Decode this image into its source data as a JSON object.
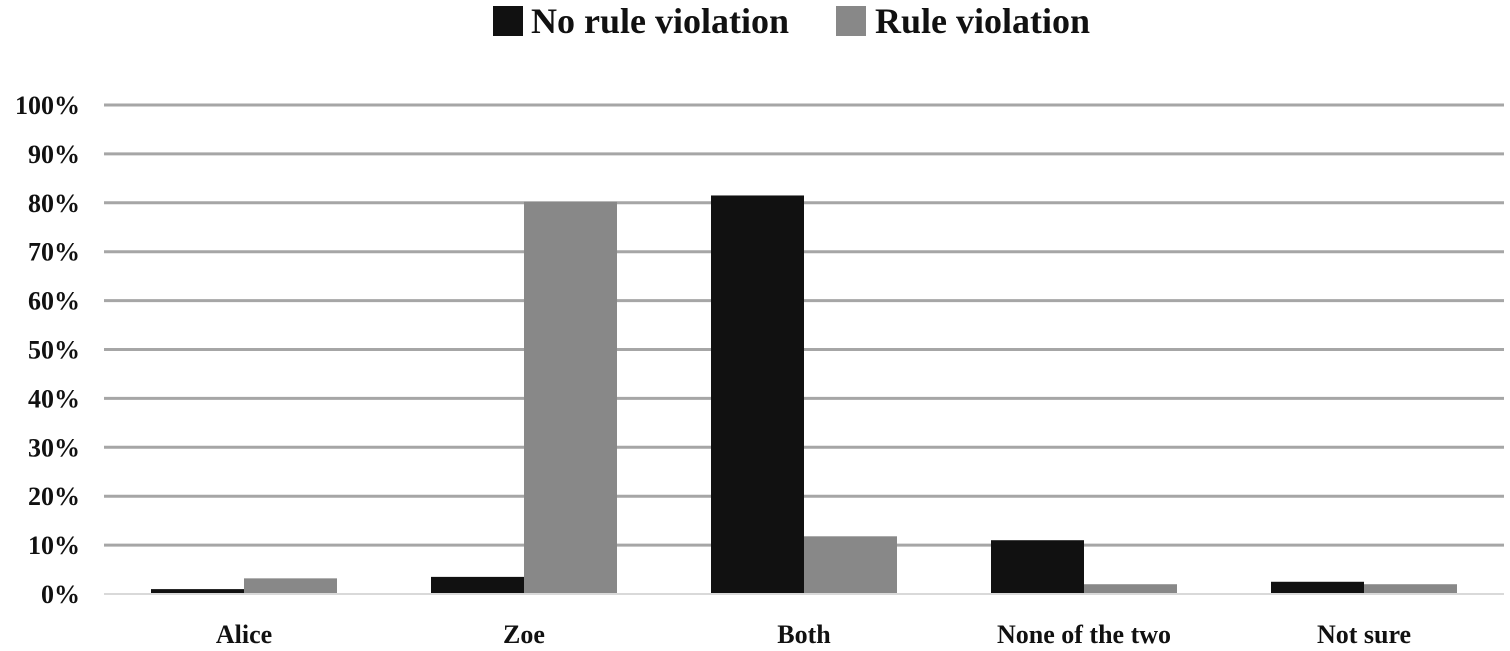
{
  "chart_data": {
    "type": "bar",
    "title": "",
    "xlabel": "",
    "ylabel": "",
    "categories": [
      "Alice",
      "Zoe",
      "Both",
      "None of the two",
      "Not sure"
    ],
    "series": [
      {
        "name": "No rule violation",
        "color": "#111111",
        "values": [
          1,
          3.5,
          81.5,
          11,
          2.5
        ]
      },
      {
        "name": "Rule violation",
        "color": "#888888",
        "values": [
          3.2,
          80.2,
          11.8,
          2,
          2
        ]
      }
    ],
    "ylim": [
      0,
      100
    ],
    "yticks": [
      "0%",
      "10%",
      "20%",
      "30%",
      "40%",
      "50%",
      "60%",
      "70%",
      "80%",
      "90%",
      "100%"
    ],
    "grid": true,
    "legend_position": "top-center",
    "gridline_color": "#a6a6a6"
  }
}
